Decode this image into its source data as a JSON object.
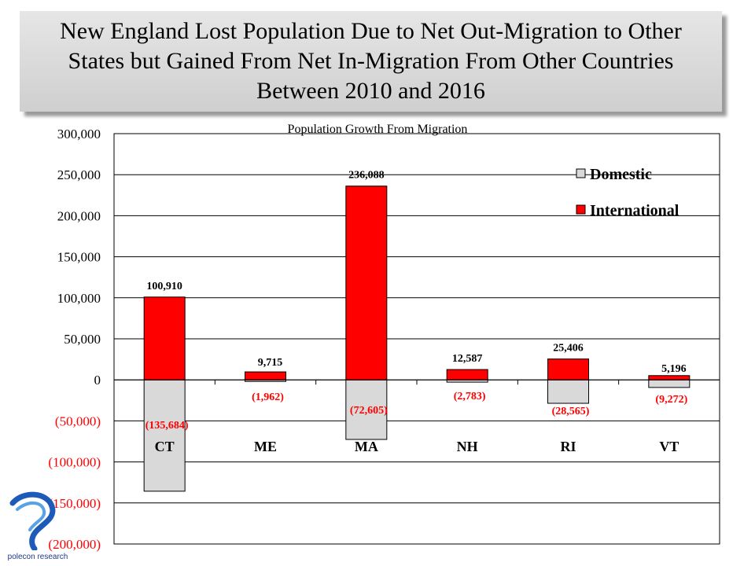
{
  "title": "New England Lost Population Due to Net Out-Migration to Other States but Gained From Net In-Migration From Other Countries Between 2010 and 2016",
  "logo": {
    "text": "polecon research",
    "icon": "polecon-swirl-logo"
  },
  "colors": {
    "domestic": "#d9d9d9",
    "international": "#ff0000",
    "negative_label": "#ff0000"
  },
  "chart_data": {
    "type": "bar",
    "title": "Population Growth From Migration",
    "categories": [
      "CT",
      "ME",
      "MA",
      "NH",
      "RI",
      "VT"
    ],
    "series": [
      {
        "name": "Domestic",
        "values": [
          -135684,
          -1962,
          -72605,
          -2783,
          -28565,
          -9272
        ],
        "labels": [
          "(135,684)",
          "(1,962)",
          "(72,605)",
          "(2,783)",
          "(28,565)",
          "(9,272)"
        ]
      },
      {
        "name": "International",
        "values": [
          100910,
          9715,
          236088,
          12587,
          25406,
          5196
        ],
        "labels": [
          "100,910",
          "9,715",
          "236,088",
          "12,587",
          "25,406",
          "5,196"
        ]
      }
    ],
    "ylim": [
      -200000,
      300000
    ],
    "yticks": [
      300000,
      250000,
      200000,
      150000,
      100000,
      50000,
      0,
      -50000,
      -100000,
      -150000,
      -200000
    ],
    "ytick_labels": [
      "300,000",
      "250,000",
      "200,000",
      "150,000",
      "100,000",
      "50,000",
      "0",
      "(50,000)",
      "(100,000)",
      "(150,000)",
      "(200,000)"
    ],
    "grid": true,
    "legend_position": "top-right"
  }
}
